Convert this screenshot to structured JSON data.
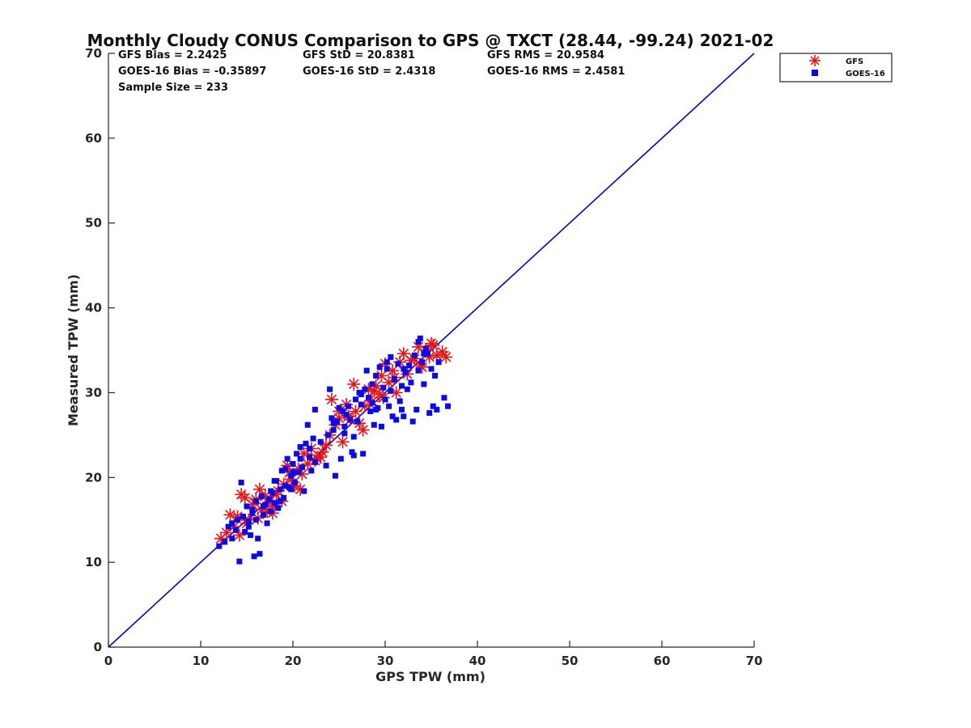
{
  "chart_data": {
    "type": "scatter",
    "title": "Monthly Cloudy CONUS Comparison to GPS @ TXCT (28.44, -99.24) 2021-02",
    "xlabel": "GPS TPW (mm)",
    "ylabel": "Measured TPW (mm)",
    "xlim": [
      0,
      70
    ],
    "ylim": [
      0,
      70
    ],
    "xticks": [
      "0",
      "10",
      "20",
      "30",
      "40",
      "50",
      "60",
      "70"
    ],
    "yticks": [
      "0",
      "10",
      "20",
      "30",
      "40",
      "50",
      "60",
      "70"
    ],
    "stats": [
      "GFS Bias = 2.2425",
      "GFS StD = 20.8381",
      "GFS RMS = 20.9584",
      "GOES-16 Bias = -0.35897",
      "GOES-16 StD = 2.4318",
      "GOES-16 RMS = 2.4581",
      "Sample Size = 233"
    ],
    "legend": [
      "GFS",
      "GOES-16"
    ],
    "legend_position": "top-right (outside axes)",
    "reference_line": {
      "label": "1:1 line",
      "x": [
        0,
        70
      ],
      "y": [
        0,
        70
      ],
      "color": "#0000dd"
    },
    "series": [
      {
        "name": "GFS",
        "marker": "asterisk",
        "color": "#ee1111",
        "points": [
          [
            12.2,
            12.8
          ],
          [
            12.8,
            13.5
          ],
          [
            13.2,
            15.6
          ],
          [
            13.6,
            14.2
          ],
          [
            14.0,
            15.4
          ],
          [
            14.2,
            13.2
          ],
          [
            14.4,
            18.0
          ],
          [
            14.8,
            17.6
          ],
          [
            15.2,
            15.0
          ],
          [
            15.6,
            16.8
          ],
          [
            16.0,
            17.4
          ],
          [
            16.4,
            18.6
          ],
          [
            16.6,
            16.2
          ],
          [
            17.0,
            17.8
          ],
          [
            17.4,
            17.0
          ],
          [
            17.8,
            15.8
          ],
          [
            18.0,
            16.6
          ],
          [
            18.4,
            18.4
          ],
          [
            18.8,
            17.2
          ],
          [
            19.0,
            19.2
          ],
          [
            19.4,
            21.4
          ],
          [
            19.8,
            19.8
          ],
          [
            20.2,
            19.0
          ],
          [
            20.6,
            21.0
          ],
          [
            20.8,
            18.6
          ],
          [
            21.0,
            20.4
          ],
          [
            21.2,
            22.8
          ],
          [
            21.6,
            21.6
          ],
          [
            22.0,
            23.4
          ],
          [
            22.4,
            22.0
          ],
          [
            23.0,
            22.4
          ],
          [
            23.6,
            23.8
          ],
          [
            24.0,
            25.0
          ],
          [
            24.2,
            29.2
          ],
          [
            24.6,
            26.2
          ],
          [
            25.0,
            27.0
          ],
          [
            25.4,
            24.2
          ],
          [
            25.8,
            28.6
          ],
          [
            26.2,
            26.8
          ],
          [
            26.6,
            31.0
          ],
          [
            26.8,
            27.8
          ],
          [
            27.2,
            26.4
          ],
          [
            27.6,
            25.6
          ],
          [
            27.8,
            28.4
          ],
          [
            28.2,
            30.4
          ],
          [
            28.6,
            29.0
          ],
          [
            29.0,
            30.8
          ],
          [
            29.4,
            29.8
          ],
          [
            29.6,
            32.0
          ],
          [
            30.0,
            33.4
          ],
          [
            30.4,
            31.2
          ],
          [
            30.8,
            32.6
          ],
          [
            31.2,
            30.0
          ],
          [
            31.6,
            33.6
          ],
          [
            32.0,
            34.6
          ],
          [
            32.4,
            32.2
          ],
          [
            32.8,
            33.8
          ],
          [
            33.2,
            34.0
          ],
          [
            33.6,
            35.4
          ],
          [
            34.0,
            33.0
          ],
          [
            34.4,
            35.0
          ],
          [
            34.8,
            34.2
          ],
          [
            35.2,
            35.6
          ],
          [
            35.6,
            34.4
          ],
          [
            36.2,
            34.8
          ],
          [
            36.6,
            34.2
          ],
          [
            25.0,
            27.8
          ],
          [
            22.6,
            22.2
          ],
          [
            19.6,
            20.6
          ],
          [
            15.0,
            14.6
          ],
          [
            17.2,
            16.0
          ],
          [
            28.8,
            30.2
          ],
          [
            31.0,
            31.8
          ],
          [
            33.8,
            33.2
          ],
          [
            26.0,
            27.2
          ],
          [
            23.2,
            23.0
          ],
          [
            18.2,
            18.0
          ],
          [
            16.2,
            15.2
          ],
          [
            29.8,
            29.4
          ],
          [
            35.0,
            35.8
          ]
        ]
      },
      {
        "name": "GOES-16",
        "marker": "square",
        "color": "#0a0aee",
        "points": [
          [
            12.0,
            11.9
          ],
          [
            12.6,
            12.4
          ],
          [
            13.0,
            14.2
          ],
          [
            13.4,
            14.6
          ],
          [
            13.8,
            13.8
          ],
          [
            14.2,
            10.1
          ],
          [
            14.4,
            19.4
          ],
          [
            14.6,
            15.4
          ],
          [
            14.8,
            13.6
          ],
          [
            15.0,
            16.6
          ],
          [
            15.2,
            14.8
          ],
          [
            15.4,
            13.2
          ],
          [
            15.6,
            16.2
          ],
          [
            15.8,
            10.7
          ],
          [
            16.0,
            15.0
          ],
          [
            16.2,
            12.8
          ],
          [
            16.4,
            11.0
          ],
          [
            16.6,
            17.8
          ],
          [
            16.8,
            15.6
          ],
          [
            17.0,
            16.8
          ],
          [
            17.2,
            14.6
          ],
          [
            17.4,
            17.4
          ],
          [
            17.6,
            16.0
          ],
          [
            17.8,
            18.2
          ],
          [
            18.0,
            17.0
          ],
          [
            18.2,
            19.6
          ],
          [
            18.4,
            16.4
          ],
          [
            18.6,
            18.6
          ],
          [
            18.8,
            20.8
          ],
          [
            19.0,
            17.6
          ],
          [
            19.2,
            19.0
          ],
          [
            19.4,
            22.2
          ],
          [
            19.6,
            18.8
          ],
          [
            19.8,
            20.2
          ],
          [
            20.0,
            21.6
          ],
          [
            20.2,
            19.4
          ],
          [
            20.4,
            22.8
          ],
          [
            20.6,
            20.6
          ],
          [
            20.8,
            23.6
          ],
          [
            21.0,
            21.2
          ],
          [
            21.2,
            18.4
          ],
          [
            21.4,
            24.0
          ],
          [
            21.6,
            26.2
          ],
          [
            21.8,
            22.4
          ],
          [
            22.0,
            20.8
          ],
          [
            22.2,
            24.6
          ],
          [
            22.4,
            28.0
          ],
          [
            23.6,
            21.4
          ],
          [
            24.0,
            30.4
          ],
          [
            24.2,
            27.0
          ],
          [
            24.4,
            25.6
          ],
          [
            24.6,
            20.2
          ],
          [
            24.8,
            26.6
          ],
          [
            25.0,
            28.2
          ],
          [
            25.2,
            22.2
          ],
          [
            25.4,
            27.8
          ],
          [
            25.6,
            25.2
          ],
          [
            25.8,
            27.4
          ],
          [
            26.0,
            28.4
          ],
          [
            26.4,
            23.0
          ],
          [
            26.6,
            22.6
          ],
          [
            26.8,
            29.2
          ],
          [
            27.0,
            26.6
          ],
          [
            27.2,
            30.0
          ],
          [
            27.4,
            28.6
          ],
          [
            27.6,
            22.8
          ],
          [
            27.8,
            30.4
          ],
          [
            28.0,
            32.6
          ],
          [
            28.2,
            29.4
          ],
          [
            28.4,
            27.8
          ],
          [
            28.6,
            31.0
          ],
          [
            28.8,
            26.2
          ],
          [
            29.0,
            32.0
          ],
          [
            29.2,
            28.2
          ],
          [
            29.4,
            33.0
          ],
          [
            29.6,
            26.0
          ],
          [
            29.8,
            30.6
          ],
          [
            30.0,
            29.2
          ],
          [
            30.2,
            32.8
          ],
          [
            30.4,
            28.4
          ],
          [
            30.6,
            34.2
          ],
          [
            30.8,
            27.2
          ],
          [
            31.0,
            31.6
          ],
          [
            31.2,
            26.8
          ],
          [
            31.4,
            33.4
          ],
          [
            31.6,
            29.0
          ],
          [
            31.8,
            28.0
          ],
          [
            32.0,
            27.2
          ],
          [
            32.2,
            32.4
          ],
          [
            32.4,
            30.4
          ],
          [
            32.6,
            33.2
          ],
          [
            32.8,
            31.2
          ],
          [
            33.0,
            26.6
          ],
          [
            33.2,
            34.4
          ],
          [
            33.4,
            28.0
          ],
          [
            33.6,
            32.6
          ],
          [
            33.8,
            36.4
          ],
          [
            34.0,
            33.6
          ],
          [
            34.2,
            31.0
          ],
          [
            34.4,
            35.2
          ],
          [
            34.6,
            34.6
          ],
          [
            34.8,
            27.6
          ],
          [
            35.0,
            32.8
          ],
          [
            35.2,
            28.4
          ],
          [
            35.4,
            32.0
          ],
          [
            35.6,
            28.0
          ],
          [
            36.4,
            29.4
          ],
          [
            36.8,
            28.4
          ],
          [
            35.8,
            33.6
          ],
          [
            33.6,
            36.0
          ],
          [
            30.2,
            33.6
          ],
          [
            26.2,
            26.8
          ],
          [
            23.8,
            25.0
          ],
          [
            21.8,
            23.4
          ],
          [
            19.2,
            21.0
          ],
          [
            17.6,
            18.4
          ],
          [
            16.0,
            17.2
          ],
          [
            14.0,
            15.0
          ],
          [
            13.4,
            12.8
          ],
          [
            15.6,
            15.8
          ],
          [
            18.0,
            19.6
          ],
          [
            20.0,
            20.6
          ],
          [
            22.4,
            21.8
          ],
          [
            24.4,
            26.4
          ],
          [
            26.6,
            24.8
          ],
          [
            28.6,
            28.8
          ],
          [
            30.6,
            30.2
          ],
          [
            32.0,
            32.8
          ],
          [
            34.2,
            34.6
          ],
          [
            29.0,
            28.0
          ],
          [
            25.6,
            26.0
          ],
          [
            20.8,
            22.2
          ],
          [
            16.8,
            16.6
          ],
          [
            18.6,
            17.2
          ],
          [
            27.4,
            29.8
          ],
          [
            31.8,
            30.8
          ],
          [
            23.0,
            24.2
          ],
          [
            19.8,
            18.6
          ],
          [
            15.2,
            14.2
          ]
        ]
      }
    ]
  }
}
